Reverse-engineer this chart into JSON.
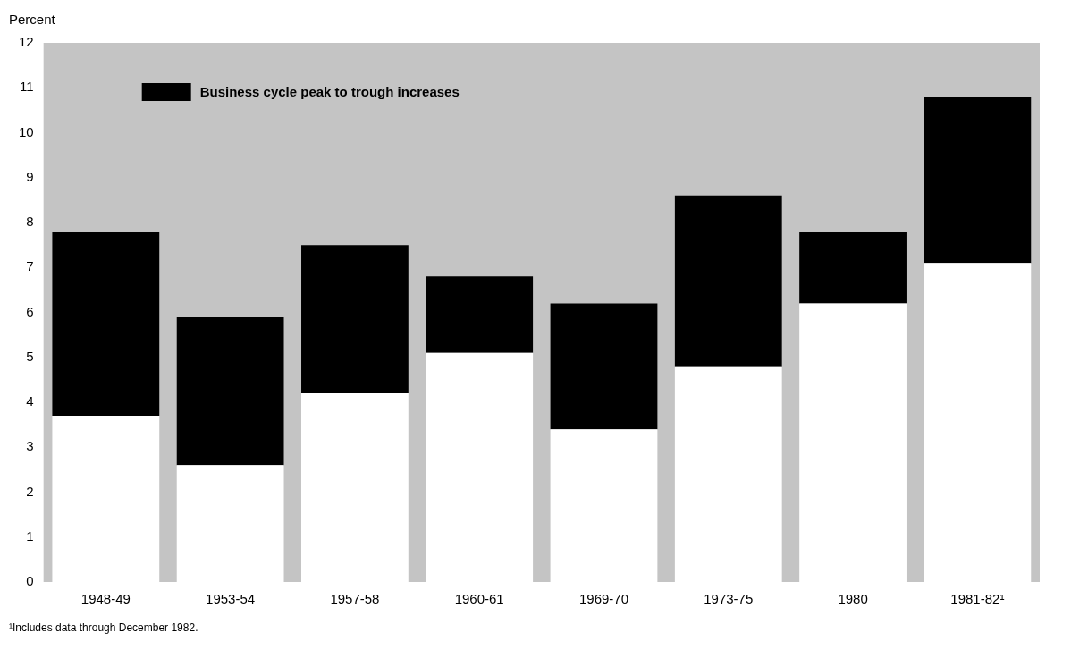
{
  "chart_data": {
    "type": "bar",
    "stacked": true,
    "ylabel": "Percent",
    "categories": [
      "1948-49",
      "1953-54",
      "1957-58",
      "1960-61",
      "1969-70",
      "1973-75",
      "1980",
      "1981-82¹"
    ],
    "series": [
      {
        "color": "#ffffff",
        "values": [
          3.7,
          2.6,
          4.2,
          5.1,
          3.4,
          4.8,
          6.2,
          7.1
        ]
      },
      {
        "name": "Business cycle peak to trough increases",
        "color": "#000000",
        "values": [
          4.1,
          3.3,
          3.3,
          1.7,
          2.8,
          3.8,
          1.6,
          3.7
        ]
      }
    ],
    "ylim": [
      0,
      12
    ],
    "yticks": [
      0,
      1,
      2,
      3,
      4,
      5,
      6,
      7,
      8,
      9,
      10,
      11,
      12
    ],
    "grid": false,
    "legend": "top left",
    "annotations": [
      "¹Includes data through December 1982."
    ]
  }
}
